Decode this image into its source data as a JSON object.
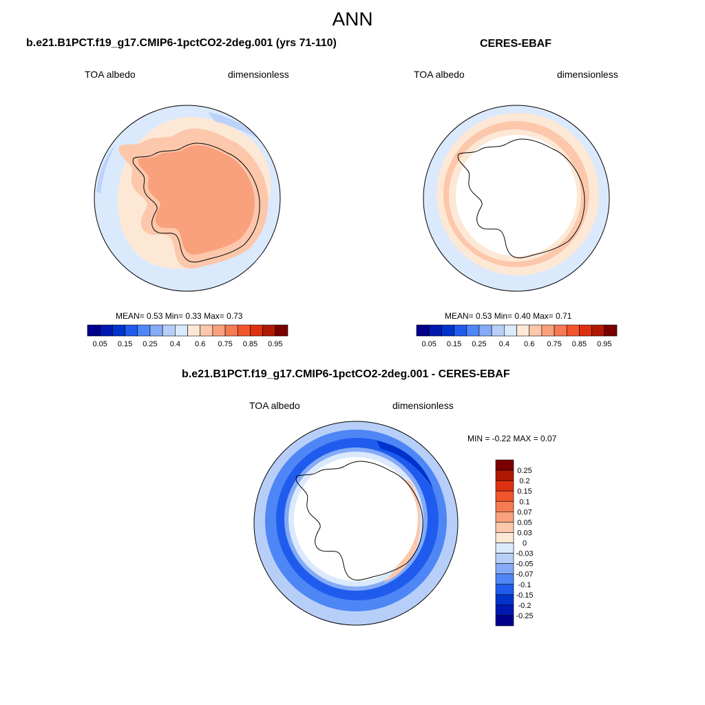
{
  "figure": {
    "title": "ANN"
  },
  "panels": [
    {
      "title": "b.e21.B1PCT.f19_g17.CMIP6-1pctCO2-2deg.001 (yrs 71-110)",
      "left_label": "TOA albedo",
      "right_label": "dimensionless",
      "stats": "MEAN=   0.53  Min=   0.33  Max=   0.73"
    },
    {
      "title": "CERES-EBAF",
      "left_label": "TOA albedo",
      "right_label": "dimensionless",
      "stats": "MEAN=   0.53  Min=   0.40  Max=   0.71"
    },
    {
      "title": "b.e21.B1PCT.f19_g17.CMIP6-1pctCO2-2deg.001 - CERES-EBAF",
      "left_label": "TOA albedo",
      "right_label": "dimensionless",
      "stats": "MIN =  -0.22 MAX =   0.07"
    }
  ],
  "colorbar_abs": {
    "colors": [
      "#00008c",
      "#0018b0",
      "#0033cc",
      "#1f5cee",
      "#4f86f6",
      "#85abf8",
      "#b7cff8",
      "#dbe9fc",
      "#fde8d6",
      "#fcc7ab",
      "#f9a07c",
      "#f67a52",
      "#f2552c",
      "#dc3010",
      "#b01904",
      "#7a0000"
    ],
    "labels": [
      "0.05",
      "0.15",
      "0.25",
      "0.4",
      "0.6",
      "0.75",
      "0.85",
      "0.95"
    ]
  },
  "colorbar_diff": {
    "colors_top_to_bottom": [
      "#7a0000",
      "#b01904",
      "#dc3010",
      "#f2552c",
      "#f67a52",
      "#f9a07c",
      "#fcc7ab",
      "#fde8d6",
      "#dbe9fc",
      "#b7cff8",
      "#85abf8",
      "#4f86f6",
      "#1f5cee",
      "#0033cc",
      "#0018b0",
      "#00008c"
    ],
    "labels_top_to_bottom": [
      "0.25",
      "0.2",
      "0.15",
      "0.1",
      "0.07",
      "0.05",
      "0.03",
      "0",
      "-0.03",
      "-0.05",
      "-0.07",
      "-0.1",
      "-0.15",
      "-0.2",
      "-0.25"
    ]
  }
}
